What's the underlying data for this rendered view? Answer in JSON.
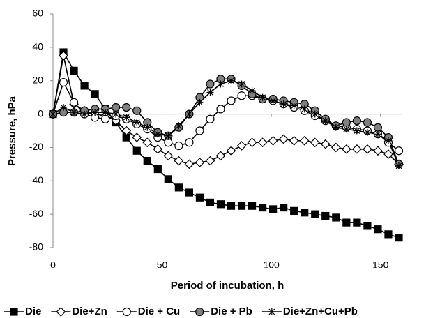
{
  "chart_data": {
    "type": "line",
    "x_label": "Period of incubation, h",
    "y_label": "Pressure, hPa",
    "x": [
      0,
      4.8,
      9.6,
      14.4,
      19.2,
      24,
      28.8,
      33.6,
      38.4,
      43.2,
      48,
      52.8,
      57.6,
      62.4,
      67.2,
      72,
      76.8,
      81.6,
      86.4,
      91.2,
      96,
      100.8,
      105.6,
      110.4,
      115.2,
      120,
      124.8,
      129.6,
      134.4,
      139.2,
      144,
      148.8,
      153.6,
      158.4
    ],
    "xlim": [
      0,
      160
    ],
    "xticks": [
      0,
      50,
      100,
      150
    ],
    "ylim": [
      -80,
      60
    ],
    "yticks": [
      -80,
      -60,
      -40,
      -20,
      0,
      20,
      40,
      60
    ],
    "grid": false,
    "legend": "bottom",
    "series": [
      {
        "name": "Die",
        "color": "#000000",
        "marker": "square",
        "fill": "#000000",
        "values": [
          0,
          37,
          26,
          17,
          12,
          3,
          -5,
          -14,
          -22,
          -28,
          -33,
          -39,
          -44,
          -47,
          -50,
          -53,
          -54,
          -55,
          -55,
          -55,
          -56,
          -57,
          -56,
          -58,
          -59,
          -60,
          -61,
          -62,
          -65,
          -65,
          -67,
          -69,
          -72,
          -74
        ]
      },
      {
        "name": "Die+Zn",
        "color": "#000000",
        "marker": "diamond",
        "fill": "#ffffff",
        "values": [
          0,
          35,
          6,
          2,
          0,
          -1,
          -4,
          -10,
          -14,
          -17,
          -21,
          -25,
          -28,
          -30,
          -29,
          -28,
          -25,
          -22,
          -19,
          -17,
          -17,
          -16,
          -15,
          -16,
          -16,
          -17,
          -18,
          -20,
          -21,
          -21,
          -21,
          -22,
          -24,
          -30
        ]
      },
      {
        "name": "Die + Cu",
        "color": "#000000",
        "marker": "circle",
        "fill": "#ffffff",
        "values": [
          0,
          19,
          7,
          0,
          -2,
          -3,
          -1,
          -3,
          -6,
          -9,
          -14,
          -17,
          -19,
          -17,
          -10,
          -3,
          3,
          8,
          11,
          11,
          9,
          8,
          6,
          4,
          2,
          -1,
          -4,
          -7,
          -8,
          -9,
          -10,
          -12,
          -17,
          -22
        ]
      },
      {
        "name": "Die + Pb",
        "color": "#000000",
        "marker": "circle",
        "fill": "#808080",
        "values": [
          0,
          1,
          1,
          2,
          3,
          3,
          4,
          4,
          2,
          -5,
          -11,
          -13,
          -8,
          0,
          10,
          18,
          21,
          21,
          17,
          12,
          9,
          9,
          8,
          7,
          6,
          2,
          -3,
          -7,
          -5,
          -4,
          -5,
          -8,
          -14,
          -30
        ]
      },
      {
        "name": "Die+Zn+Cu+Pb",
        "color": "#000000",
        "marker": "asterisk",
        "fill": "#000000",
        "values": [
          0,
          4,
          1,
          0,
          1,
          1,
          0,
          -2,
          -5,
          -8,
          -12,
          -13,
          -7,
          0,
          7,
          13,
          18,
          20,
          18,
          14,
          10,
          8,
          6,
          5,
          3,
          0,
          -4,
          -8,
          -9,
          -10,
          -11,
          -12,
          -16,
          -31
        ]
      }
    ]
  }
}
